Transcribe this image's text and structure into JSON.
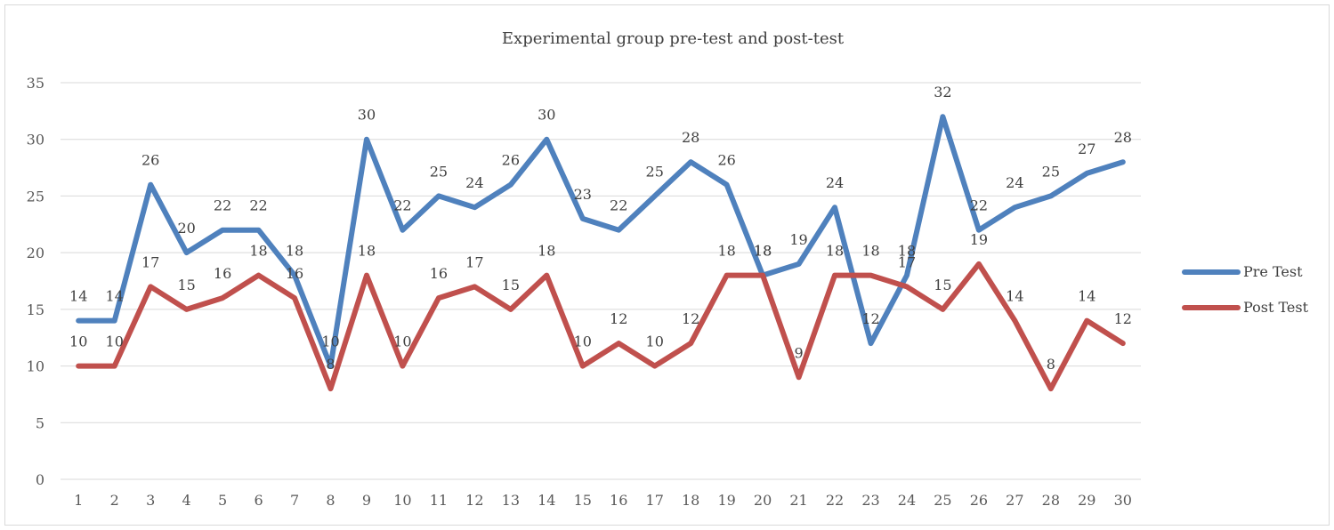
{
  "chart_data": {
    "type": "line",
    "title": "Experimental group pre-test and post-test",
    "xlabel": "",
    "ylabel": "",
    "categories": [
      "1",
      "2",
      "3",
      "4",
      "5",
      "6",
      "7",
      "8",
      "9",
      "10",
      "11",
      "12",
      "13",
      "14",
      "15",
      "16",
      "17",
      "18",
      "19",
      "20",
      "21",
      "22",
      "23",
      "24",
      "25",
      "26",
      "27",
      "28",
      "29",
      "30"
    ],
    "ylim": [
      0,
      35
    ],
    "yticks": [
      "0",
      "5",
      "10",
      "15",
      "20",
      "25",
      "30",
      "35"
    ],
    "grid": true,
    "legend_position": "right",
    "series": [
      {
        "name": "Pre Test",
        "color": "#4f81bd",
        "values": [
          14,
          14,
          26,
          20,
          22,
          22,
          18,
          10,
          30,
          22,
          25,
          24,
          26,
          30,
          23,
          22,
          25,
          28,
          26,
          18,
          19,
          24,
          12,
          18,
          32,
          22,
          24,
          25,
          27,
          28
        ]
      },
      {
        "name": "Post Test",
        "color": "#c0504d",
        "values": [
          10,
          10,
          17,
          15,
          16,
          18,
          16,
          8,
          18,
          10,
          16,
          17,
          15,
          18,
          10,
          12,
          10,
          12,
          18,
          18,
          9,
          18,
          18,
          17,
          15,
          19,
          14,
          8,
          14,
          12
        ]
      }
    ]
  }
}
